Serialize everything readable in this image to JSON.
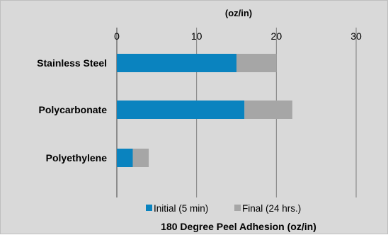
{
  "chart_data": {
    "type": "bar",
    "orientation": "horizontal",
    "stacked": true,
    "unit_label": "(oz/in)",
    "xlabel": "180 Degree Peel Adhesion (oz/in)",
    "xlim": [
      0,
      30
    ],
    "xticks": [
      0,
      10,
      20,
      30
    ],
    "categories": [
      "Stainless Steel",
      "Polycarbonate",
      "Polyethylene"
    ],
    "series": [
      {
        "name": "Initial (5 min)",
        "values": [
          15,
          16,
          2
        ],
        "color": "#0a83bf"
      },
      {
        "name": "Final (24 hrs.)",
        "values": [
          5,
          6,
          2
        ],
        "color": "#a6a6a6"
      }
    ],
    "grid": true,
    "gridlines": "vertical",
    "legend_position": "bottom"
  }
}
